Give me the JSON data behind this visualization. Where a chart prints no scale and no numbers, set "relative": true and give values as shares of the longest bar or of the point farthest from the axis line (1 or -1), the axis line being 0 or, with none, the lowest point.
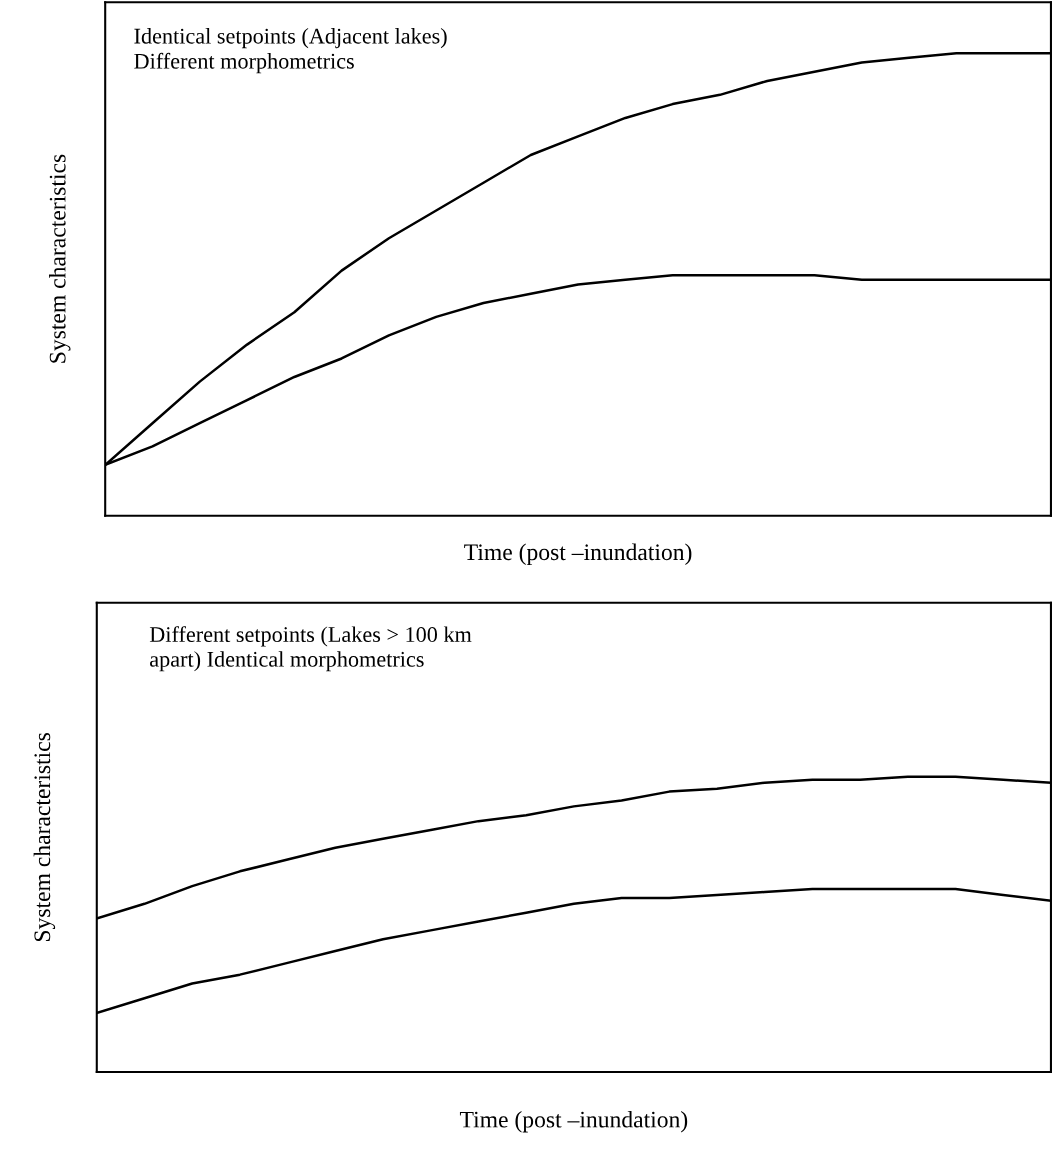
{
  "chart_data": [
    {
      "type": "line",
      "relative": true,
      "tick_labels": false,
      "grid": false,
      "legend": false,
      "xlabel": "Time (post –inundation)",
      "ylabel": "System characteristics",
      "annotations": [
        "Identical setpoints (Adjacent lakes)\nDifferent morphometrics"
      ],
      "categories": [
        null,
        null,
        null,
        null,
        null,
        null,
        null,
        null,
        null,
        null,
        null,
        null,
        null,
        null,
        null,
        null,
        null,
        null,
        null,
        null,
        null
      ],
      "series": [
        {
          "color": "#000000",
          "values": [
            0.11,
            0.2,
            0.29,
            0.37,
            0.44,
            0.53,
            0.6,
            0.66,
            0.72,
            0.78,
            0.82,
            0.86,
            0.89,
            0.91,
            0.94,
            0.96,
            0.98,
            0.99,
            1.0,
            1.0,
            1.0
          ]
        },
        {
          "color": "#000000",
          "values": [
            0.11,
            0.15,
            0.2,
            0.25,
            0.3,
            0.34,
            0.39,
            0.43,
            0.46,
            0.48,
            0.5,
            0.51,
            0.52,
            0.52,
            0.52,
            0.52,
            0.51,
            0.51,
            0.51,
            0.51,
            0.51
          ]
        }
      ]
    },
    {
      "type": "line",
      "relative": true,
      "tick_labels": false,
      "grid": false,
      "legend": false,
      "xlabel": "Time (post –inundation)",
      "ylabel": "System characteristics",
      "annotations": [
        "Different setpoints (Lakes > 100 km\napart) Identical morphometrics"
      ],
      "categories": [
        null,
        null,
        null,
        null,
        null,
        null,
        null,
        null,
        null,
        null,
        null,
        null,
        null,
        null,
        null,
        null,
        null,
        null,
        null,
        null,
        null
      ],
      "series": [
        {
          "color": "#000000",
          "values": [
            0.52,
            0.57,
            0.63,
            0.68,
            0.72,
            0.76,
            0.79,
            0.82,
            0.85,
            0.87,
            0.9,
            0.92,
            0.95,
            0.96,
            0.98,
            0.99,
            0.99,
            1.0,
            1.0,
            0.99,
            0.98
          ]
        },
        {
          "color": "#000000",
          "values": [
            0.2,
            0.25,
            0.3,
            0.33,
            0.37,
            0.41,
            0.45,
            0.48,
            0.51,
            0.54,
            0.57,
            0.59,
            0.59,
            0.6,
            0.61,
            0.62,
            0.62,
            0.62,
            0.62,
            0.6,
            0.58
          ]
        }
      ]
    }
  ]
}
